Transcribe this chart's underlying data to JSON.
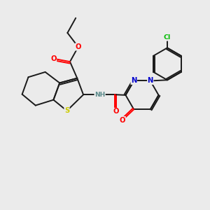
{
  "background_color": "#ebebeb",
  "bond_color": "#1a1a1a",
  "atom_colors": {
    "O": "#ff0000",
    "N": "#0000cd",
    "S": "#cccc00",
    "Cl": "#00bb00",
    "H": "#5a8a8a",
    "C": "#1a1a1a"
  },
  "figsize": [
    3.0,
    3.0
  ],
  "dpi": 100
}
